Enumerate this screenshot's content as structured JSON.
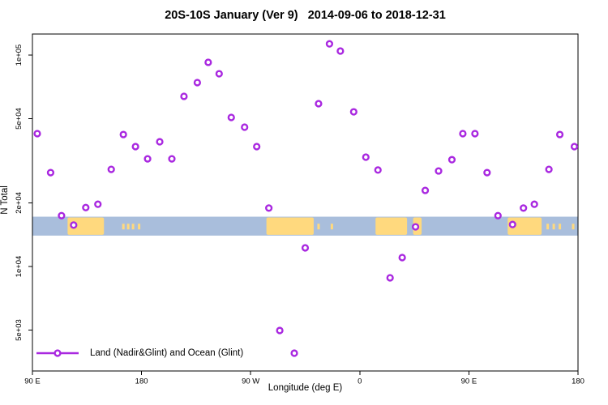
{
  "chart_data": {
    "type": "scatter",
    "title": "20S-10S January (Ver 9)   2014-09-06 to 2018-12-31",
    "xlabel": "Longitude (deg E)",
    "ylabel": "N Total",
    "y_scale": "log10",
    "y_range": [
      3300,
      130000
    ],
    "grid": false,
    "x_axis": {
      "description": "longitude, degrees east of 90E, axis spans 450 degrees",
      "span_deg": 450,
      "ticks": [
        {
          "deg": 0,
          "label": "90 E"
        },
        {
          "deg": 90,
          "label": "180"
        },
        {
          "deg": 180,
          "label": "90 W"
        },
        {
          "deg": 270,
          "label": "0"
        },
        {
          "deg": 360,
          "label": "90 E"
        },
        {
          "deg": 450,
          "label": "180"
        }
      ]
    },
    "y_ticks": [
      {
        "value": 100000,
        "label": "1e+05"
      },
      {
        "value": 50000,
        "label": "5e+04"
      },
      {
        "value": 20000,
        "label": "2e+04"
      },
      {
        "value": 10000,
        "label": "1e+04"
      },
      {
        "value": 5000,
        "label": "5e+03"
      }
    ],
    "legend": {
      "label": "Land (Nadir&Glint) and Ocean (Glint)",
      "position": "bottom-left"
    },
    "series": [
      {
        "name": "Land (Nadir&Glint) and Ocean (Glint)",
        "marker": "open-circle",
        "color": "#A928E0",
        "points_deg_value": [
          [
            4,
            42500
          ],
          [
            15,
            27800
          ],
          [
            24,
            17400
          ],
          [
            34,
            15700
          ],
          [
            44,
            19000
          ],
          [
            54,
            19700
          ],
          [
            65,
            28800
          ],
          [
            75,
            42100
          ],
          [
            85,
            36900
          ],
          [
            95,
            32300
          ],
          [
            105,
            38900
          ],
          [
            115,
            32300
          ],
          [
            125,
            63800
          ],
          [
            136,
            74100
          ],
          [
            145,
            92400
          ],
          [
            154,
            81600
          ],
          [
            164,
            50700
          ],
          [
            175,
            45600
          ],
          [
            185,
            36900
          ],
          [
            195,
            18900
          ],
          [
            204,
            4980
          ],
          [
            216,
            3890
          ],
          [
            225,
            12250
          ],
          [
            236,
            58900
          ],
          [
            245,
            113000
          ],
          [
            254,
            104500
          ],
          [
            265,
            53900
          ],
          [
            275,
            32900
          ],
          [
            285,
            28600
          ],
          [
            295,
            8840
          ],
          [
            305,
            11020
          ],
          [
            316,
            15400
          ],
          [
            324,
            22900
          ],
          [
            335,
            28300
          ],
          [
            346,
            32000
          ],
          [
            355,
            42500
          ],
          [
            365,
            42500
          ],
          [
            375,
            27800
          ],
          [
            384,
            17400
          ],
          [
            396,
            15800
          ],
          [
            405,
            18900
          ],
          [
            414,
            19700
          ],
          [
            426,
            28800
          ],
          [
            435,
            42100
          ],
          [
            447,
            36900
          ]
        ]
      }
    ],
    "map_band": {
      "description": "20S-10S latitude strip map: ocean blue, land tan",
      "ocean_color": "#A9BEDC",
      "land_color": "#FFD97E",
      "n_value_range": [
        14000,
        17200
      ],
      "land_segments_deg": [
        {
          "name": "australia",
          "from": 29,
          "to": 59
        },
        {
          "name": "south-america",
          "from": 193,
          "to": 232
        },
        {
          "name": "africa",
          "from": 283,
          "to": 309
        },
        {
          "name": "madagascar",
          "from": 314,
          "to": 321
        },
        {
          "name": "australia-repeat",
          "from": 392,
          "to": 420
        }
      ],
      "island_specks_deg": [
        [
          74,
          76
        ],
        [
          78,
          80
        ],
        [
          82,
          84
        ],
        [
          87,
          89
        ],
        [
          235,
          237
        ],
        [
          246,
          248
        ],
        [
          424,
          426
        ],
        [
          429,
          431
        ],
        [
          434,
          436
        ],
        [
          445,
          447
        ]
      ]
    },
    "axis_color": "#000000",
    "background_color": "#ffffff"
  }
}
